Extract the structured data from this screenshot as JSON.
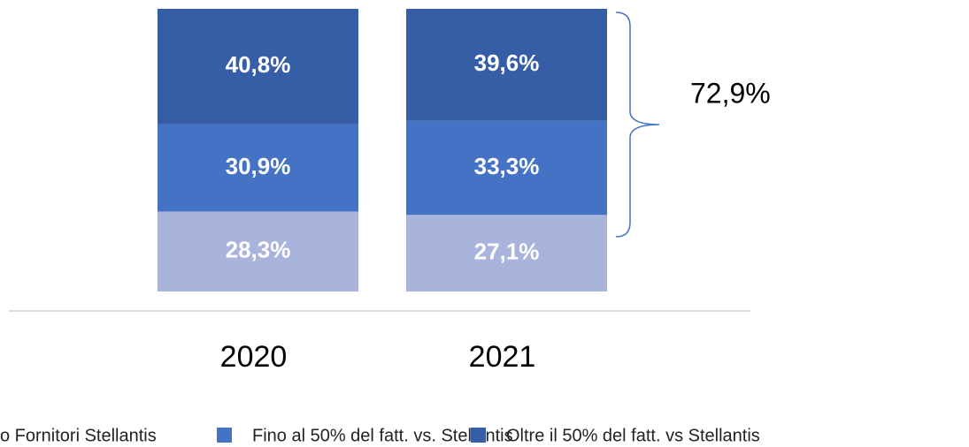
{
  "chart_data": {
    "type": "stacked_bar",
    "categories": [
      "2020",
      "2021"
    ],
    "series": [
      {
        "name": "o Fornitori Stellantis",
        "color": "#a9b4dc",
        "values": [
          28.3,
          27.1
        ],
        "value_labels": [
          "28,3%",
          "27,1%"
        ]
      },
      {
        "name": "Fino al 50% del fatt. vs. Stellantis",
        "color": "#4472c4",
        "values": [
          30.9,
          33.3
        ],
        "value_labels": [
          "30,9%",
          "33,3%"
        ]
      },
      {
        "name": "Oltre il 50% del fatt. vs Stellantis",
        "color": "#355ea6",
        "values": [
          40.8,
          39.6
        ],
        "value_labels": [
          "40,8%",
          "39,6%"
        ]
      }
    ],
    "ylim": [
      0,
      100
    ],
    "annotation": "72,9%"
  }
}
